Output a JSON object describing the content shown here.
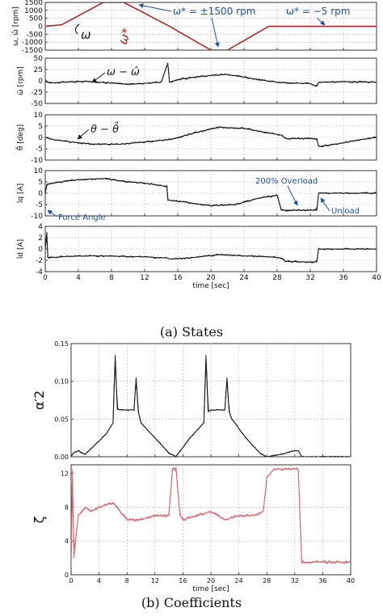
{
  "figure": {
    "caption_a": "(a) States",
    "caption_b": "(b) Coefficients",
    "colors": {
      "black": "#1a1a1a",
      "red": "#c0171c",
      "blue": "#1f4e9a",
      "pink": "#e0606d",
      "grid": "#b5b5b5"
    }
  },
  "chart_data": [
    {
      "id": "speed",
      "type": "line",
      "ylabel": "ω, ω̂ [rpm]",
      "ylim": [
        -1500,
        1500
      ],
      "yticks": [
        "1500",
        "1000",
        "500",
        "0",
        "-500",
        "-1000",
        "-1500"
      ],
      "series": [
        {
          "name": "ω",
          "color": "black",
          "x": [
            0,
            2,
            7,
            9.5,
            15,
            20,
            22,
            27,
            40
          ],
          "y": [
            0,
            100,
            1500,
            1500,
            0,
            -1500,
            -1500,
            0,
            0
          ]
        },
        {
          "name": "ω*",
          "color": "red",
          "x": [
            0,
            2,
            7,
            9.5,
            15,
            20,
            22,
            27,
            40
          ],
          "y": [
            0,
            100,
            1500,
            1500,
            0,
            -1500,
            -1500,
            0,
            0
          ]
        }
      ],
      "annotations": [
        "ω* = ±1500 rpm",
        "ω* = −5 rpm"
      ]
    },
    {
      "id": "speed_error",
      "type": "line",
      "ylabel": "ω̃ [rpm]",
      "ylim": [
        -50,
        50
      ],
      "yticks": [
        "50",
        "25",
        "0",
        "-25",
        "-50"
      ],
      "annotations": [
        "ω − ω̂"
      ],
      "series": [
        {
          "color": "black",
          "x": [
            0,
            0.5,
            2,
            5,
            8,
            10,
            14,
            14.8,
            15,
            16,
            18,
            20,
            22,
            24,
            26,
            28,
            30,
            32,
            32.8,
            33,
            36,
            40
          ],
          "y": [
            0,
            -5,
            -3,
            -1,
            -5,
            -8,
            -3,
            40,
            -3,
            3,
            8,
            12,
            14,
            8,
            2,
            -3,
            -5,
            -6,
            -12,
            -3,
            -2,
            -3
          ]
        }
      ]
    },
    {
      "id": "angle_error",
      "type": "line",
      "ylabel": "θ̃ [deg]",
      "ylim": [
        -10,
        10
      ],
      "yticks": [
        "10",
        "5",
        "0",
        "-5",
        "-10"
      ],
      "annotations": [
        "θ − θ̂"
      ],
      "series": [
        {
          "color": "black",
          "x": [
            0,
            1,
            3,
            6,
            9,
            12,
            14.8,
            15,
            18,
            21,
            24,
            27,
            28.5,
            29,
            32,
            32.8,
            33,
            35,
            38,
            40
          ],
          "y": [
            0,
            -1,
            -2,
            -3,
            -3,
            -2,
            -1,
            -1,
            2,
            4.5,
            4,
            2,
            1,
            -0.5,
            -0.5,
            -0.5,
            -4,
            -3,
            -1,
            0
          ]
        }
      ]
    },
    {
      "id": "iq",
      "type": "line",
      "ylabel": "îq [A]",
      "ylim": [
        -10,
        10
      ],
      "yticks": [
        "10",
        "5",
        "0",
        "-5",
        "-10"
      ],
      "annotations": [
        "200% Overload",
        "Unload"
      ],
      "series": [
        {
          "color": "black",
          "x": [
            0,
            0.2,
            0.5,
            1,
            4,
            7,
            10,
            12,
            14.7,
            14.8,
            17,
            20,
            23,
            26,
            28,
            28.5,
            30,
            32,
            32.8,
            33,
            40
          ],
          "y": [
            0,
            4,
            4,
            4.5,
            6,
            6.5,
            5,
            4.5,
            3,
            -3,
            -4,
            -5.5,
            -5,
            -2,
            -1,
            -7.5,
            -7.5,
            -7.5,
            -7.5,
            0,
            0
          ]
        }
      ]
    },
    {
      "id": "id",
      "type": "line",
      "ylabel": "îd [A]",
      "ylim": [
        -4,
        4
      ],
      "yticks": [
        "4",
        "2",
        "0",
        "-2",
        "-4"
      ],
      "annotations": [
        "Force Angle"
      ],
      "series": [
        {
          "color": "black",
          "x": [
            0,
            0.2,
            0.3,
            1,
            3,
            6,
            9,
            12,
            14.8,
            15,
            18,
            21,
            24,
            27,
            28.5,
            29,
            32,
            32.8,
            33,
            40
          ],
          "y": [
            0,
            3,
            -1.5,
            -1.5,
            -1.3,
            -1.2,
            -1.3,
            -1.4,
            -1.6,
            -1.8,
            -1.5,
            -1,
            -1.2,
            -1.4,
            -1.6,
            -2.2,
            -2.3,
            -2.3,
            0,
            0
          ]
        }
      ]
    },
    {
      "id": "alpha2",
      "type": "line",
      "ylabel": "α′2",
      "ylim": [
        0,
        0.15
      ],
      "yticks": [
        "0.15",
        "0.10",
        "0.05",
        "0.00"
      ],
      "series": [
        {
          "color": "black",
          "x": [
            0,
            0.3,
            1,
            2,
            5,
            6,
            6.3,
            6.6,
            7,
            9,
            9.3,
            9.6,
            10,
            12,
            14,
            15,
            17,
            19,
            19.3,
            19.6,
            20,
            22,
            22.3,
            22.6,
            23,
            25,
            27,
            28,
            30,
            32,
            32.5,
            33,
            40
          ],
          "y": [
            0,
            0.005,
            0.008,
            0.003,
            0.03,
            0.045,
            0.135,
            0.063,
            0.062,
            0.062,
            0.105,
            0.06,
            0.045,
            0.025,
            0.005,
            0,
            0.025,
            0.045,
            0.135,
            0.06,
            0.062,
            0.062,
            0.105,
            0.06,
            0.05,
            0.025,
            0.005,
            0,
            0.003,
            0.008,
            0.008,
            0,
            0
          ]
        }
      ]
    },
    {
      "id": "zeta",
      "type": "line",
      "ylabel": "ζ",
      "ylim": [
        0,
        13
      ],
      "yticks": [
        "12",
        "8",
        "4",
        "0"
      ],
      "xlabel": "time [sec]",
      "xticks": [
        "0",
        "4",
        "8",
        "12",
        "16",
        "20",
        "24",
        "28",
        "32",
        "36",
        "40"
      ],
      "series": [
        {
          "color": "pink",
          "x": [
            0,
            0.2,
            0.4,
            1,
            2,
            3,
            4,
            6,
            8,
            10,
            12,
            14,
            14.5,
            15,
            15.6,
            16,
            18,
            20,
            22,
            24,
            26,
            27.5,
            28,
            29,
            32,
            32.5,
            33,
            36,
            40
          ],
          "y": [
            1,
            12.5,
            2,
            7,
            8,
            7.5,
            8,
            8.5,
            6.5,
            6.5,
            7,
            7,
            12.5,
            12.5,
            7,
            6.5,
            7,
            7.5,
            6.5,
            7,
            7,
            7.5,
            11.5,
            12.5,
            12.5,
            12.5,
            1.5,
            1.5,
            1.5
          ]
        }
      ]
    }
  ],
  "shared_axis": {
    "xlabel": "time [sec]",
    "xlim": [
      0,
      40
    ],
    "xticks": [
      "0",
      "4",
      "8",
      "12",
      "16",
      "20",
      "24",
      "28",
      "32",
      "36",
      "40"
    ]
  }
}
